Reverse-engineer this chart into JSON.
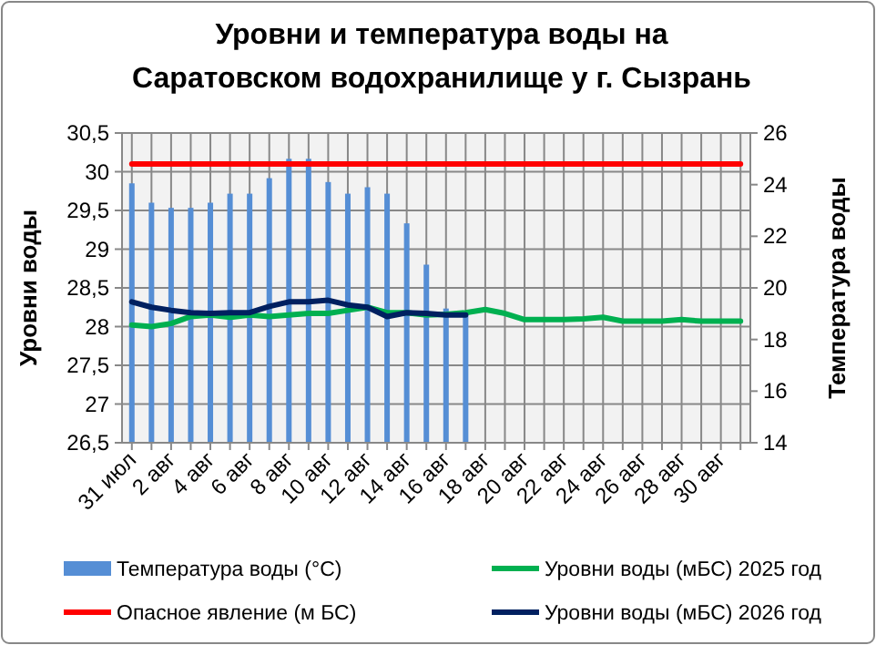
{
  "chart_data": {
    "type": "line",
    "title": "Уровни и температура  воды на Саратовском водохранилище у  г. Сызрань",
    "categories": [
      "31 июл",
      null,
      "2 авг",
      null,
      "4 авг",
      null,
      "6 авг",
      null,
      "8 авг",
      null,
      "10 авг",
      null,
      "12 авг",
      null,
      "14 авг",
      null,
      "16 авг",
      null,
      "18 авг",
      null,
      "20 авг",
      null,
      "22 авг",
      null,
      "24 авг",
      null,
      "26 авг",
      null,
      "28 авг",
      null,
      "30 авг",
      null
    ],
    "series": [
      {
        "name": "Температура воды (°С)",
        "type": "bar",
        "axis": "y2",
        "color": "#558ed5",
        "values": [
          24.05,
          23.3,
          23.1,
          23.1,
          23.3,
          23.65,
          23.65,
          24.25,
          25.0,
          25.0,
          24.1,
          23.65,
          23.9,
          23.65,
          22.5,
          20.9,
          19.2,
          19.0,
          null,
          null,
          null,
          null,
          null,
          null,
          null,
          null,
          null,
          null,
          null,
          null,
          null,
          null
        ]
      },
      {
        "name": "Уровни воды (мБС)  2025 год",
        "color": "#00b050",
        "values": [
          28.02,
          28.0,
          28.04,
          28.13,
          28.15,
          28.12,
          28.15,
          28.13,
          28.15,
          28.17,
          28.17,
          28.21,
          28.25,
          28.18,
          28.18,
          28.15,
          28.16,
          28.18,
          28.22,
          28.17,
          28.09,
          28.09,
          28.09,
          28.1,
          28.12,
          28.07,
          28.07,
          28.07,
          28.09,
          28.07,
          28.07,
          28.07
        ]
      },
      {
        "name": "Опасное явление    (м БС)",
        "color": "#ff0000",
        "values": [
          30.1,
          30.1,
          30.1,
          30.1,
          30.1,
          30.1,
          30.1,
          30.1,
          30.1,
          30.1,
          30.1,
          30.1,
          30.1,
          30.1,
          30.1,
          30.1,
          30.1,
          30.1,
          30.1,
          30.1,
          30.1,
          30.1,
          30.1,
          30.1,
          30.1,
          30.1,
          30.1,
          30.1,
          30.1,
          30.1,
          30.1,
          30.1
        ]
      },
      {
        "name": "Уровни воды (мБС)  2026 год",
        "color": "#002060",
        "values": [
          28.32,
          28.25,
          28.21,
          28.18,
          28.17,
          28.18,
          28.18,
          28.26,
          28.32,
          28.32,
          28.34,
          28.28,
          28.25,
          28.13,
          28.18,
          28.17,
          28.15,
          28.15,
          null,
          null,
          null,
          null,
          null,
          null,
          null,
          null,
          null,
          null,
          null,
          null,
          null,
          null
        ]
      }
    ],
    "ylabel": "Уровни воды",
    "y2label": "Температура воды",
    "ylim": [
      26.5,
      30.5
    ],
    "yticks": [
      {
        "value": 26.5,
        "label": "26,5"
      },
      27,
      {
        "value": 27.5,
        "label": "27,5"
      },
      28,
      {
        "value": 28.5,
        "label": "28,5"
      },
      29,
      {
        "value": 29.5,
        "label": "29,5"
      },
      30,
      {
        "value": 30.5,
        "label": "30,5"
      }
    ],
    "y2lim": [
      14,
      26
    ],
    "y2ticks": [
      14,
      16,
      18,
      20,
      22,
      24,
      26
    ],
    "grid": true,
    "legend": "bottom"
  }
}
